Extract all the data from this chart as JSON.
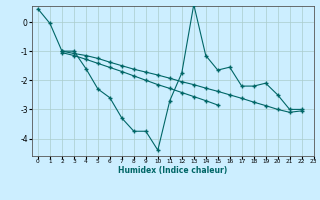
{
  "title": "",
  "xlabel": "Humidex (Indice chaleur)",
  "background_color": "#cceeff",
  "grid_color": "#aacccc",
  "line_color": "#006666",
  "xlim": [
    -0.5,
    23
  ],
  "ylim": [
    -4.6,
    0.55
  ],
  "yticks": [
    0,
    -1,
    -2,
    -3,
    -4
  ],
  "xticks": [
    0,
    1,
    2,
    3,
    4,
    5,
    6,
    7,
    8,
    9,
    10,
    11,
    12,
    13,
    14,
    15,
    16,
    17,
    18,
    19,
    20,
    21,
    22,
    23
  ],
  "line1_x": [
    0,
    1,
    2,
    3,
    4,
    5,
    6,
    7,
    8,
    9,
    10,
    11,
    12,
    13,
    14,
    15,
    16,
    17,
    18,
    19,
    20,
    21,
    22
  ],
  "line1_y": [
    0.45,
    -0.05,
    -1.0,
    -1.0,
    -1.6,
    -2.3,
    -2.6,
    -3.3,
    -3.75,
    -3.75,
    -4.4,
    -2.7,
    -1.75,
    0.6,
    -1.15,
    -1.65,
    -1.55,
    -2.2,
    -2.2,
    -2.1,
    -2.5,
    -3.0,
    -3.0
  ],
  "line2_x": [
    2,
    3,
    4,
    5,
    6,
    7,
    8,
    9,
    10,
    11,
    12,
    13,
    14,
    15,
    16,
    17,
    18,
    19,
    20,
    21,
    22
  ],
  "line2_y": [
    -1.0,
    -1.08,
    -1.15,
    -1.25,
    -1.38,
    -1.5,
    -1.62,
    -1.72,
    -1.82,
    -1.93,
    -2.05,
    -2.15,
    -2.27,
    -2.38,
    -2.5,
    -2.62,
    -2.75,
    -2.87,
    -3.0,
    -3.1,
    -3.05
  ],
  "line3_x": [
    2,
    3,
    4,
    5,
    6,
    7,
    8,
    9,
    10,
    11,
    12,
    13,
    14,
    15
  ],
  "line3_y": [
    -1.05,
    -1.15,
    -1.28,
    -1.42,
    -1.56,
    -1.7,
    -1.85,
    -2.0,
    -2.15,
    -2.28,
    -2.42,
    -2.56,
    -2.7,
    -2.85
  ]
}
